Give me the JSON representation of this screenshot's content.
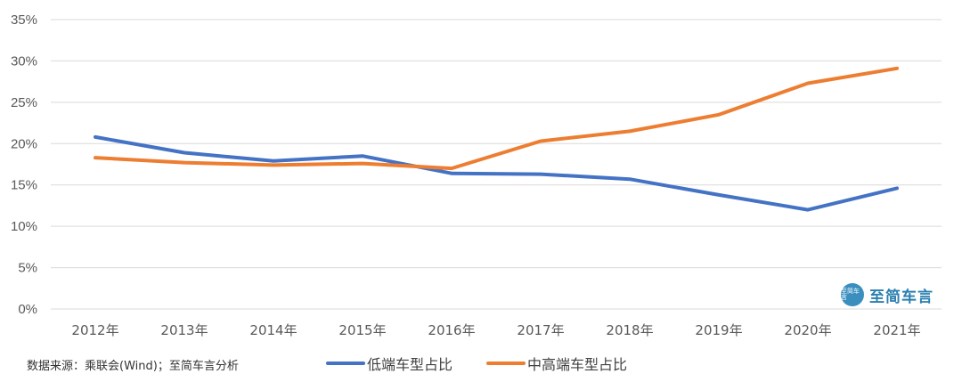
{
  "chart_data": {
    "type": "line",
    "categories": [
      "2012年",
      "2013年",
      "2014年",
      "2015年",
      "2016年",
      "2017年",
      "2018年",
      "2019年",
      "2020年",
      "2021年"
    ],
    "series": [
      {
        "name": "低端车型占比",
        "color": "#4472C4",
        "values": [
          20.8,
          18.9,
          17.9,
          18.5,
          16.4,
          16.3,
          15.7,
          13.8,
          12.0,
          14.6
        ]
      },
      {
        "name": "中高端车型占比",
        "color": "#ED7D31",
        "values": [
          18.3,
          17.7,
          17.4,
          17.6,
          17.0,
          20.3,
          21.5,
          23.5,
          27.3,
          29.1
        ]
      }
    ],
    "yticks": [
      "0%",
      "5%",
      "10%",
      "15%",
      "20%",
      "25%",
      "30%",
      "35%"
    ],
    "ylim": [
      0,
      35
    ],
    "y_unit": "%",
    "grid": true,
    "legend_position": "bottom"
  },
  "source_note": "数据来源：乘联会(Wind)；至简车言分析",
  "watermark": {
    "logo_text": "至简车言",
    "text": "至简车言"
  }
}
